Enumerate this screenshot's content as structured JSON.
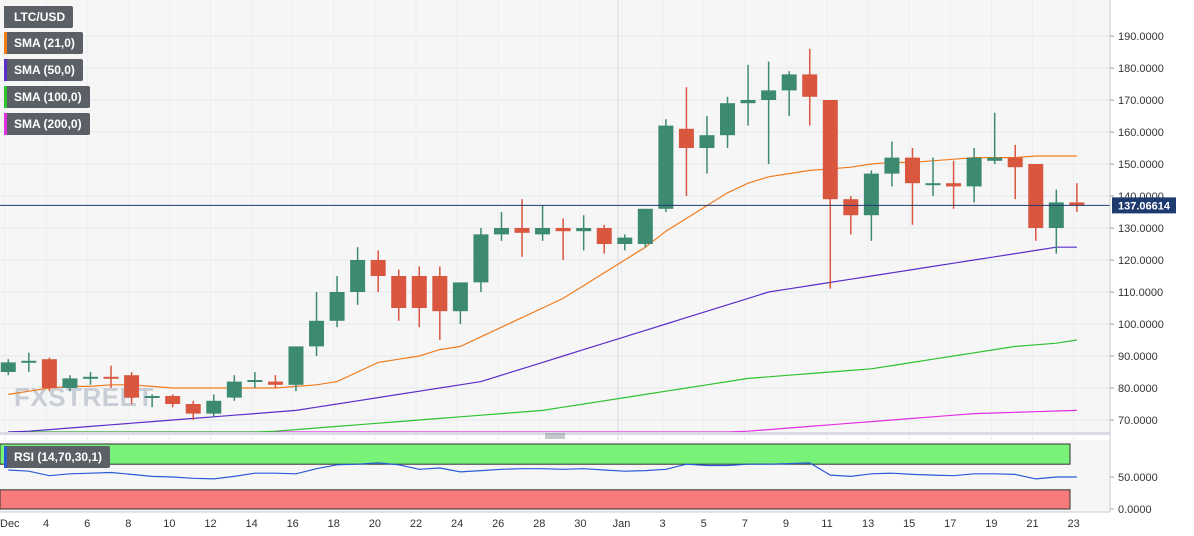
{
  "chart_data": {
    "type": "candlestick",
    "symbol": "LTC/USD",
    "last_price": "137.06614",
    "colors": {
      "up": "#3d8a72",
      "down": "#d9573f",
      "sma21": "#f07c1e",
      "sma50": "#5a2ec9",
      "sma100": "#2fc22f",
      "sma200": "#e12fe0",
      "rsi": "#2a5bd7",
      "rsi_upper": "#79f279",
      "rsi_lower": "#f77b7b"
    },
    "indicators": [
      {
        "key": "sma21",
        "label": "SMA (21,0)"
      },
      {
        "key": "sma50",
        "label": "SMA (50,0)"
      },
      {
        "key": "sma100",
        "label": "SMA (100,0)"
      },
      {
        "key": "sma200",
        "label": "SMA (200,0)"
      }
    ],
    "price_axis": {
      "ticks": [
        "190.0000",
        "180.0000",
        "170.0000",
        "160.0000",
        "150.0000",
        "140.0000",
        "130.0000",
        "120.0000",
        "110.0000",
        "100.0000",
        "90.0000",
        "80.0000",
        "70.0000"
      ],
      "range": [
        65,
        200
      ]
    },
    "x_labels": [
      "Dec",
      "4",
      "6",
      "8",
      "10",
      "12",
      "14",
      "16",
      "18",
      "20",
      "22",
      "24",
      "26",
      "28",
      "30",
      "Jan",
      "3",
      "5",
      "7",
      "9",
      "11",
      "13",
      "15",
      "17",
      "19",
      "21",
      "23"
    ],
    "candles": [
      {
        "date": "Dec 2",
        "o": 85,
        "h": 89,
        "l": 84,
        "c": 88
      },
      {
        "date": "Dec 3",
        "o": 88,
        "h": 91,
        "l": 85,
        "c": 88.5
      },
      {
        "date": "Dec 4",
        "o": 89,
        "h": 89.5,
        "l": 79,
        "c": 80
      },
      {
        "date": "Dec 5",
        "o": 80,
        "h": 84,
        "l": 79,
        "c": 83
      },
      {
        "date": "Dec 6",
        "o": 83,
        "h": 85,
        "l": 81,
        "c": 83.5
      },
      {
        "date": "Dec 7",
        "o": 83.5,
        "h": 87,
        "l": 80,
        "c": 83
      },
      {
        "date": "Dec 8",
        "o": 84,
        "h": 85,
        "l": 75,
        "c": 77
      },
      {
        "date": "Dec 9",
        "o": 77,
        "h": 78,
        "l": 74,
        "c": 77.5
      },
      {
        "date": "Dec 10",
        "o": 77.5,
        "h": 78,
        "l": 74,
        "c": 75
      },
      {
        "date": "Dec 11",
        "o": 75,
        "h": 76,
        "l": 70,
        "c": 72
      },
      {
        "date": "Dec 12",
        "o": 72,
        "h": 78,
        "l": 71,
        "c": 76
      },
      {
        "date": "Dec 13",
        "o": 77,
        "h": 84,
        "l": 76,
        "c": 82
      },
      {
        "date": "Dec 14",
        "o": 82,
        "h": 85,
        "l": 80,
        "c": 82.5
      },
      {
        "date": "Dec 15",
        "o": 82,
        "h": 84,
        "l": 80,
        "c": 81
      },
      {
        "date": "Dec 16",
        "o": 81,
        "h": 93,
        "l": 79,
        "c": 93
      },
      {
        "date": "Dec 17",
        "o": 93,
        "h": 110,
        "l": 90,
        "c": 101
      },
      {
        "date": "Dec 18",
        "o": 101,
        "h": 115,
        "l": 99,
        "c": 110
      },
      {
        "date": "Dec 19",
        "o": 110,
        "h": 124,
        "l": 106,
        "c": 120
      },
      {
        "date": "Dec 20",
        "o": 120,
        "h": 123,
        "l": 110,
        "c": 115
      },
      {
        "date": "Dec 21",
        "o": 115,
        "h": 117,
        "l": 101,
        "c": 105
      },
      {
        "date": "Dec 22",
        "o": 115,
        "h": 118,
        "l": 99,
        "c": 105
      },
      {
        "date": "Dec 23",
        "o": 115,
        "h": 118,
        "l": 95,
        "c": 104
      },
      {
        "date": "Dec 24",
        "o": 104,
        "h": 112,
        "l": 100,
        "c": 113
      },
      {
        "date": "Dec 25",
        "o": 113,
        "h": 130,
        "l": 110,
        "c": 128
      },
      {
        "date": "Dec 26",
        "o": 128,
        "h": 135,
        "l": 126,
        "c": 130
      },
      {
        "date": "Dec 27",
        "o": 130,
        "h": 139,
        "l": 121,
        "c": 128.5
      },
      {
        "date": "Dec 28",
        "o": 128,
        "h": 137,
        "l": 126,
        "c": 130
      },
      {
        "date": "Dec 29",
        "o": 130,
        "h": 133,
        "l": 120,
        "c": 129
      },
      {
        "date": "Dec 30",
        "o": 129,
        "h": 134,
        "l": 123,
        "c": 130
      },
      {
        "date": "Dec 31",
        "o": 130,
        "h": 131,
        "l": 122,
        "c": 125
      },
      {
        "date": "Jan 1",
        "o": 125,
        "h": 128,
        "l": 123,
        "c": 127
      },
      {
        "date": "Jan 2",
        "o": 125,
        "h": 136,
        "l": 124,
        "c": 136
      },
      {
        "date": "Jan 3",
        "o": 136,
        "h": 164,
        "l": 135,
        "c": 162
      },
      {
        "date": "Jan 4",
        "o": 161,
        "h": 174,
        "l": 140,
        "c": 155
      },
      {
        "date": "Jan 5",
        "o": 155,
        "h": 165,
        "l": 147,
        "c": 159
      },
      {
        "date": "Jan 6",
        "o": 159,
        "h": 171,
        "l": 155,
        "c": 169
      },
      {
        "date": "Jan 7",
        "o": 169,
        "h": 181,
        "l": 162,
        "c": 170
      },
      {
        "date": "Jan 8",
        "o": 170,
        "h": 182,
        "l": 150,
        "c": 173
      },
      {
        "date": "Jan 9",
        "o": 173,
        "h": 179,
        "l": 165,
        "c": 178
      },
      {
        "date": "Jan 10",
        "o": 178,
        "h": 186,
        "l": 162,
        "c": 171
      },
      {
        "date": "Jan 11",
        "o": 170,
        "h": 170,
        "l": 111,
        "c": 139
      },
      {
        "date": "Jan 12",
        "o": 139,
        "h": 140,
        "l": 128,
        "c": 134
      },
      {
        "date": "Jan 13",
        "o": 134,
        "h": 148,
        "l": 126,
        "c": 147
      },
      {
        "date": "Jan 14",
        "o": 147,
        "h": 157,
        "l": 143,
        "c": 152
      },
      {
        "date": "Jan 15",
        "o": 152,
        "h": 155,
        "l": 131,
        "c": 144
      },
      {
        "date": "Jan 16",
        "o": 144,
        "h": 152,
        "l": 140,
        "c": 144
      },
      {
        "date": "Jan 17",
        "o": 144,
        "h": 151,
        "l": 136,
        "c": 143
      },
      {
        "date": "Jan 18",
        "o": 143,
        "h": 155,
        "l": 138,
        "c": 152
      },
      {
        "date": "Jan 19",
        "o": 151,
        "h": 166,
        "l": 150,
        "c": 152
      },
      {
        "date": "Jan 20",
        "o": 152,
        "h": 156,
        "l": 139,
        "c": 149
      },
      {
        "date": "Jan 21",
        "o": 150,
        "h": 150,
        "l": 126,
        "c": 130
      },
      {
        "date": "Jan 22",
        "o": 130,
        "h": 142,
        "l": 122,
        "c": 138
      },
      {
        "date": "Jan 23",
        "o": 138,
        "h": 144,
        "l": 135,
        "c": 137.07
      }
    ],
    "sma21": [
      78,
      79,
      80,
      80.5,
      80.5,
      81,
      81,
      80.5,
      80,
      80,
      80,
      80,
      80,
      80,
      80.5,
      81,
      82,
      85,
      88,
      89,
      90,
      92,
      93,
      96,
      99,
      102,
      105,
      108,
      112,
      116,
      120,
      124,
      129,
      133,
      137,
      141,
      144,
      146,
      147,
      148,
      148.5,
      149,
      150,
      150.5,
      150.5,
      151,
      151.5,
      152,
      152,
      152,
      152.5,
      152.5,
      152.5
    ],
    "sma50": [
      66,
      66.5,
      67,
      67.5,
      68,
      68.5,
      69,
      69.5,
      70,
      70.5,
      71,
      71.5,
      72,
      72.5,
      73,
      74,
      75,
      76,
      77,
      78,
      79,
      80,
      81,
      82,
      84,
      86,
      88,
      90,
      92,
      94,
      96,
      98,
      100,
      102,
      104,
      106,
      108,
      110,
      111,
      112,
      113,
      114,
      115,
      116,
      117,
      118,
      119,
      120,
      121,
      122,
      123,
      124,
      124
    ],
    "sma100": [
      60,
      60.5,
      61,
      61.5,
      62,
      62.5,
      63,
      63.5,
      64,
      64.5,
      65,
      65.5,
      66,
      66.5,
      67,
      67.5,
      68,
      68.5,
      69,
      69.5,
      70,
      70.5,
      71,
      71.5,
      72,
      72.5,
      73,
      74,
      75,
      76,
      77,
      78,
      79,
      80,
      81,
      82,
      83,
      83.5,
      84,
      84.5,
      85,
      85.5,
      86,
      87,
      88,
      89,
      90,
      91,
      92,
      93,
      93.5,
      94,
      95
    ],
    "sma200": [
      55,
      55.3,
      55.6,
      55.9,
      56.2,
      56.5,
      56.8,
      57.1,
      57.4,
      57.7,
      58,
      58.3,
      58.6,
      58.9,
      59.2,
      59.5,
      59.8,
      60.1,
      60.4,
      60.7,
      61,
      61.3,
      61.6,
      61.9,
      62.2,
      62.5,
      62.8,
      63.1,
      63.4,
      63.7,
      64,
      64.3,
      64.6,
      65,
      65.5,
      66,
      66.5,
      67,
      67.5,
      68,
      68.5,
      69,
      69.5,
      70,
      70.5,
      71,
      71.5,
      72,
      72.2,
      72.4,
      72.6,
      72.8,
      73
    ],
    "rsi": {
      "label": "RSI (14,70,30,1)",
      "axis_ticks": [
        "50.0000",
        "0.0000"
      ],
      "range": [
        0,
        100
      ],
      "upper": 70,
      "lower": 30,
      "values": [
        61,
        59,
        52,
        55,
        56,
        57,
        54,
        51,
        50,
        48,
        47,
        51,
        56,
        56,
        55,
        63,
        69,
        70,
        72,
        69,
        62,
        64,
        58,
        60,
        62,
        63,
        63,
        62,
        63,
        61,
        59,
        60,
        62,
        70,
        68,
        68,
        70,
        70,
        71,
        72,
        53,
        51,
        55,
        56,
        54,
        53,
        52,
        55,
        55,
        54,
        47,
        50,
        50
      ]
    }
  }
}
